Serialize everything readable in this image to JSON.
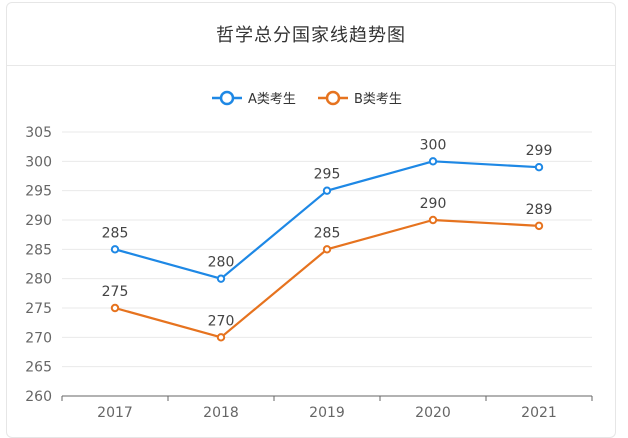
{
  "chart_data": {
    "type": "line",
    "title": "哲学总分国家线趋势图",
    "categories": [
      "2017",
      "2018",
      "2019",
      "2020",
      "2021"
    ],
    "series": [
      {
        "name": "A类考生",
        "color": "#1e88e5",
        "values": [
          285,
          280,
          295,
          300,
          299
        ]
      },
      {
        "name": "B类考生",
        "color": "#e6731f",
        "values": [
          275,
          270,
          285,
          290,
          289
        ]
      }
    ],
    "ylim": [
      260,
      305
    ],
    "yticks": [
      "260",
      "265",
      "270",
      "275",
      "280",
      "285",
      "290",
      "295",
      "300",
      "305"
    ],
    "grid": true,
    "legend_position": "top-center",
    "data_labels": true
  }
}
